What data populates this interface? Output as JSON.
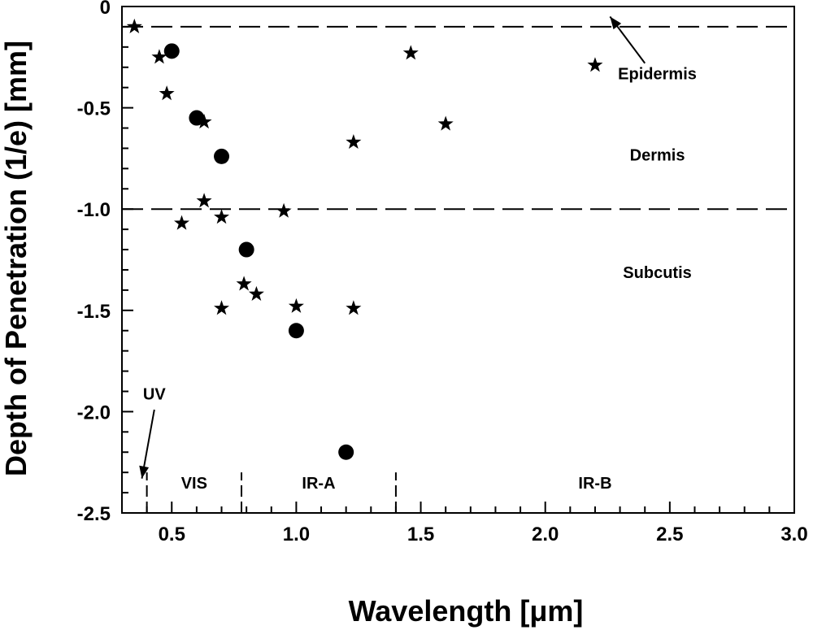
{
  "chart_data": {
    "type": "scatter",
    "title": "",
    "xlabel": "Wavelength [μm]",
    "ylabel": "Depth of Penetration (1/e) [mm]",
    "xlim": [
      0.3,
      3.0
    ],
    "ylim": [
      -2.5,
      0
    ],
    "x_ticks": [
      0.5,
      1.0,
      1.5,
      2.0,
      2.5,
      3.0
    ],
    "x_tick_labels": [
      "0.5",
      "1.0",
      "1.5",
      "2.0",
      "2.5",
      "3.0"
    ],
    "y_ticks": [
      0,
      -0.5,
      -1.0,
      -1.5,
      -2.0,
      -2.5
    ],
    "y_tick_labels": [
      "0",
      "-0.5",
      "-1.0",
      "-1.5",
      "-2.0",
      "-2.5"
    ],
    "grid": false,
    "series": [
      {
        "name": "stars",
        "marker": "star",
        "points": [
          {
            "x": 0.35,
            "y": -0.1
          },
          {
            "x": 0.45,
            "y": -0.25
          },
          {
            "x": 0.48,
            "y": -0.43
          },
          {
            "x": 0.54,
            "y": -1.07
          },
          {
            "x": 0.63,
            "y": -0.57
          },
          {
            "x": 0.63,
            "y": -0.96
          },
          {
            "x": 0.7,
            "y": -1.04
          },
          {
            "x": 0.7,
            "y": -1.49
          },
          {
            "x": 0.79,
            "y": -1.37
          },
          {
            "x": 0.84,
            "y": -1.42
          },
          {
            "x": 0.95,
            "y": -1.01
          },
          {
            "x": 1.0,
            "y": -1.48
          },
          {
            "x": 1.23,
            "y": -0.67
          },
          {
            "x": 1.23,
            "y": -1.49
          },
          {
            "x": 1.46,
            "y": -0.23
          },
          {
            "x": 1.6,
            "y": -0.58
          },
          {
            "x": 2.2,
            "y": -0.29
          }
        ]
      },
      {
        "name": "circles",
        "marker": "circle",
        "points": [
          {
            "x": 0.5,
            "y": -0.22
          },
          {
            "x": 0.6,
            "y": -0.55
          },
          {
            "x": 0.7,
            "y": -0.74
          },
          {
            "x": 0.8,
            "y": -1.2
          },
          {
            "x": 1.0,
            "y": -1.6
          },
          {
            "x": 1.2,
            "y": -2.2
          }
        ]
      }
    ],
    "horizontal_lines": [
      {
        "name": "epidermis-boundary",
        "y": -0.1
      },
      {
        "name": "dermis-boundary",
        "y": -1.0
      }
    ],
    "band_dividers": [
      {
        "name": "uv-vis",
        "x": 0.4
      },
      {
        "name": "vis-ira",
        "x": 0.78
      },
      {
        "name": "ira-irb",
        "x": 1.4
      }
    ],
    "band_divider_y_range": [
      -2.5,
      -2.3
    ],
    "region_labels": [
      {
        "name": "epidermis",
        "text": "Epidermis",
        "x": 2.45,
        "y": -0.36
      },
      {
        "name": "dermis",
        "text": "Dermis",
        "x": 2.45,
        "y": -0.76
      },
      {
        "name": "subcutis",
        "text": "Subcutis",
        "x": 2.45,
        "y": -1.34
      }
    ],
    "band_labels": [
      {
        "name": "vis",
        "text": "VIS",
        "x": 0.59,
        "y": -2.38
      },
      {
        "name": "ir-a",
        "text": "IR-A",
        "x": 1.09,
        "y": -2.38
      },
      {
        "name": "ir-b",
        "text": "IR-B",
        "x": 2.2,
        "y": -2.38
      }
    ],
    "uv_label": {
      "text": "UV",
      "x": 0.43,
      "y": -1.94
    },
    "arrows": [
      {
        "name": "uv-arrow",
        "from": [
          0.43,
          -1.99
        ],
        "to": [
          0.38,
          -2.33
        ]
      },
      {
        "name": "epidermis-arrow",
        "from": [
          2.4,
          -0.28
        ],
        "to": [
          2.26,
          -0.05
        ]
      }
    ]
  }
}
